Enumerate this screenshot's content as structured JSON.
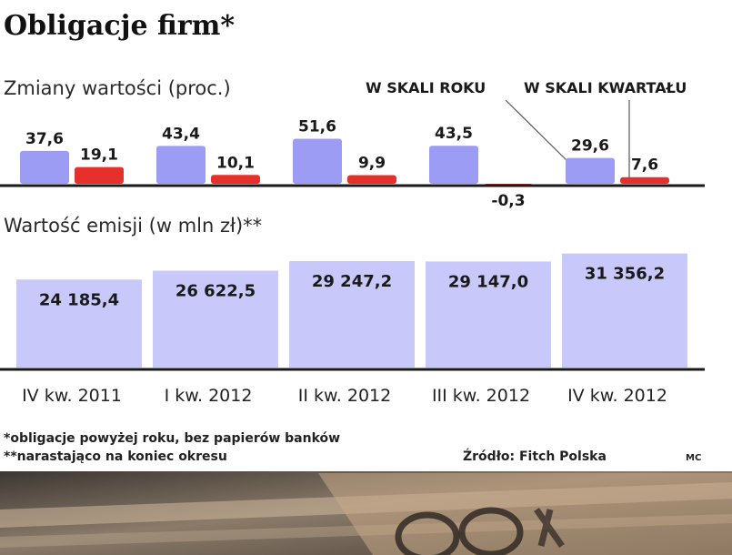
{
  "title": "Obligacje firm*",
  "colors": {
    "annual": "#9d9cf4",
    "quarterly": "#e5302b",
    "emission": "#c9c8fa",
    "baseline": "#1a1a1a",
    "photo": "#6a5a4a"
  },
  "chart_data": [
    {
      "type": "bar",
      "title": "Zmiany wartości (proc.)",
      "categories": [
        "IV kw. 2011",
        "I kw. 2012",
        "II kw. 2012",
        "III kw. 2012",
        "IV kw. 2012"
      ],
      "series": [
        {
          "name": "W SKALI ROKU",
          "values": [
            37.6,
            43.4,
            51.6,
            43.5,
            29.6
          ],
          "labels": [
            "37,6",
            "43,4",
            "51,6",
            "43,5",
            "29,6"
          ]
        },
        {
          "name": "W SKALI KWARTAŁU",
          "values": [
            19.1,
            10.1,
            9.9,
            -0.3,
            7.6
          ],
          "labels": [
            "19,1",
            "10,1",
            "9,9",
            "-0,3",
            "7,6"
          ]
        }
      ],
      "grid": false,
      "legend": "top-right"
    },
    {
      "type": "bar",
      "title": "Wartość emisji (w mln zł)**",
      "categories": [
        "IV kw. 2011",
        "I kw. 2012",
        "II kw. 2012",
        "III kw. 2012",
        "IV kw. 2012"
      ],
      "series": [
        {
          "values": [
            24185.4,
            26622.5,
            29247.2,
            29147.0,
            31356.2
          ],
          "labels": [
            "24 185,4",
            "26 622,5",
            "29 247,2",
            "29 147,0",
            "31 356,2"
          ]
        }
      ],
      "grid": false
    }
  ],
  "footnotes": [
    "*obligacje powyżej roku, bez papierów banków",
    "**narastająco na koniec okresu"
  ],
  "source": "Źródło: Fitch Polska",
  "credit": "MC"
}
